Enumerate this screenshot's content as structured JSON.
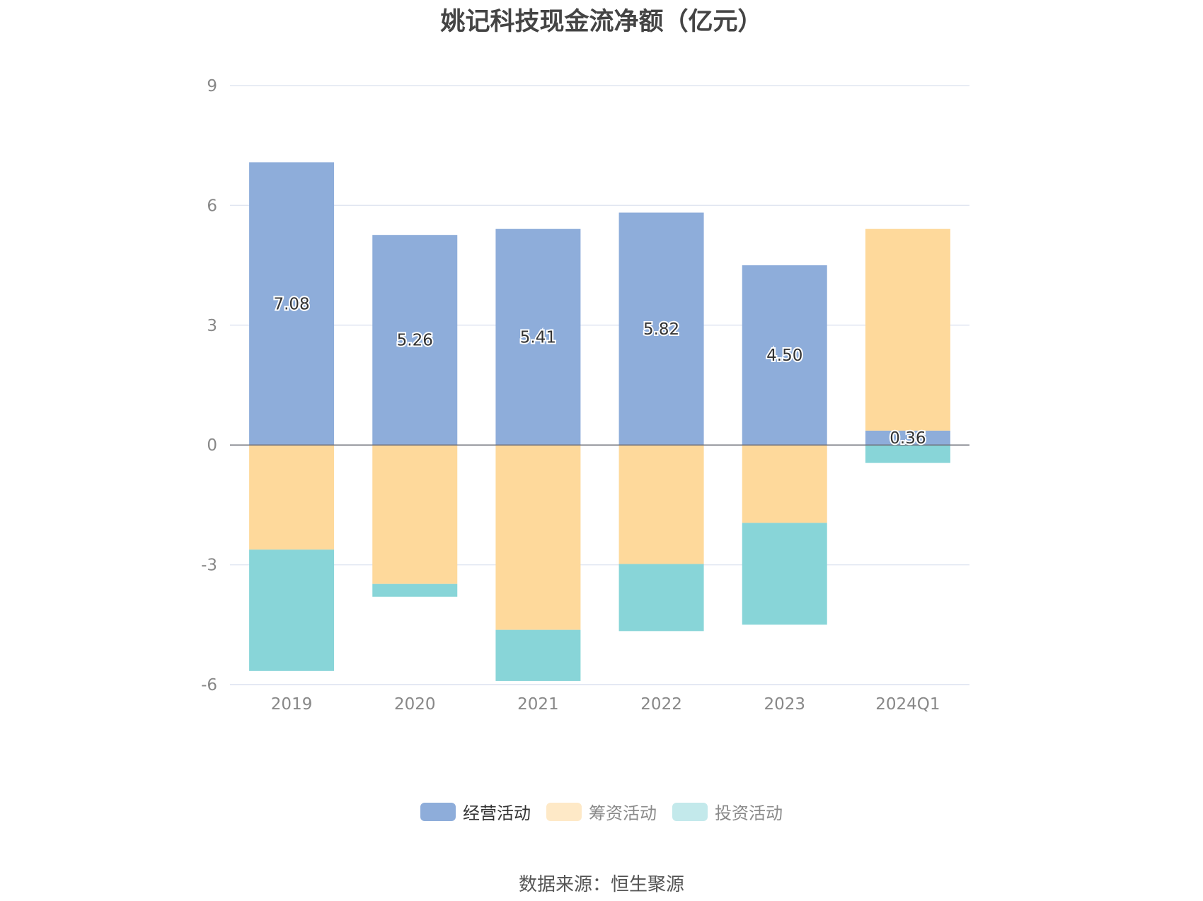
{
  "page": {
    "title": "姚记科技现金流净额（亿元）",
    "source": "数据来源：恒生聚源"
  },
  "colors": {
    "operating": "#8EADDA",
    "financing": "#FED99B",
    "investing": "#88D5D8",
    "financing_legend": "#FEE9C7",
    "investing_legend": "#C3E9EB"
  },
  "chart_data": {
    "type": "bar",
    "stacked": true,
    "title": "姚记科技现金流净额（亿元）",
    "categories": [
      "2019",
      "2020",
      "2021",
      "2022",
      "2023",
      "2024Q1"
    ],
    "yticks": [
      "9",
      "6",
      "3",
      "0",
      "-3",
      "-6"
    ],
    "ylim": [
      -6,
      9
    ],
    "series": [
      {
        "name": "经营活动",
        "values": [
          7.08,
          5.26,
          5.41,
          5.82,
          4.5,
          0.36
        ],
        "labels": [
          "7.08",
          "5.26",
          "5.41",
          "5.82",
          "4.50",
          "0.36"
        ]
      },
      {
        "name": "筹资活动",
        "values": [
          -2.62,
          -3.48,
          -4.63,
          -2.98,
          -1.95,
          5.05
        ]
      },
      {
        "name": "投资活动",
        "values": [
          -3.04,
          -0.32,
          -1.28,
          -1.68,
          -2.55,
          -0.45
        ]
      }
    ],
    "legend_position": "bottom",
    "grid": true
  }
}
